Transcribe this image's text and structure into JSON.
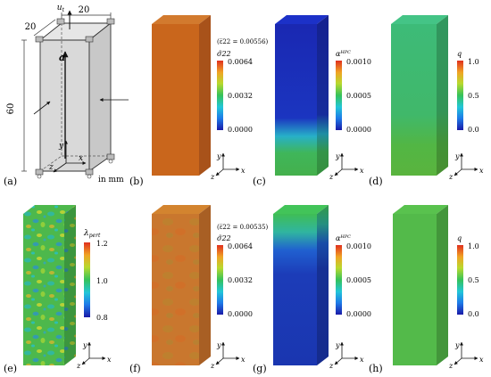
{
  "panel_labels": [
    "(a)",
    "(b)",
    "(c)",
    "(d)",
    "(e)",
    "(f)",
    "(g)",
    "(h)"
  ],
  "schematic": {
    "dim_width": "20",
    "dim_depth": "20",
    "dim_height": "60",
    "load_label": "u",
    "load_sub": "t",
    "vector_label": "a",
    "unit_note": "in mm",
    "axis_x": "x",
    "axis_y": "y",
    "axis_z": "z"
  },
  "axes_triad": {
    "x": "x",
    "y": "y",
    "z": "z"
  },
  "colorbars": {
    "sigma_top": {
      "header": "(ε̅22 = 0.00556)",
      "title": "σ̃22",
      "ticks": [
        "0.0064",
        "0.0032",
        "0.0000"
      ]
    },
    "alpha_top": {
      "title": "α",
      "title_sup": "HPC",
      "ticks": [
        "0.0010",
        "0.0005",
        "0.0000"
      ]
    },
    "q_top": {
      "title": "q",
      "ticks": [
        "1.0",
        "0.5",
        "0.0"
      ]
    },
    "lambda_bottom": {
      "title": "λ",
      "title_sub": "pert",
      "ticks": [
        "1.2",
        "1.0",
        "0.8"
      ]
    },
    "sigma_bottom": {
      "header": "(ε̅22 = 0.00535)",
      "title": "σ̃22",
      "ticks": [
        "0.0064",
        "0.0032",
        "0.0000"
      ]
    },
    "alpha_bottom": {
      "title": "α",
      "title_sup": "HPC",
      "ticks": [
        "0.0010",
        "0.0005",
        "0.0000"
      ]
    },
    "q_bottom": {
      "title": "q",
      "ticks": [
        "1.0",
        "0.5",
        "0.0"
      ]
    }
  },
  "colors": {
    "rainbow": [
      "#1a1aa8",
      "#1e7be8",
      "#22c6d8",
      "#35c25a",
      "#b8d92e",
      "#f0a424",
      "#e0301e"
    ],
    "sigma_uniform": "#c9661c",
    "alpha_top_blue": "#1a2fb8",
    "alpha_top_green": "#42b652",
    "q_green": "#3fb86a",
    "lambda_green": "#48b54c",
    "sigma_pert": "#c9772e",
    "alpha_bottom_blue": "#1c3cb8",
    "alpha_bottom_green": "#3fbd55",
    "q_bottom_green": "#53ba4a"
  }
}
